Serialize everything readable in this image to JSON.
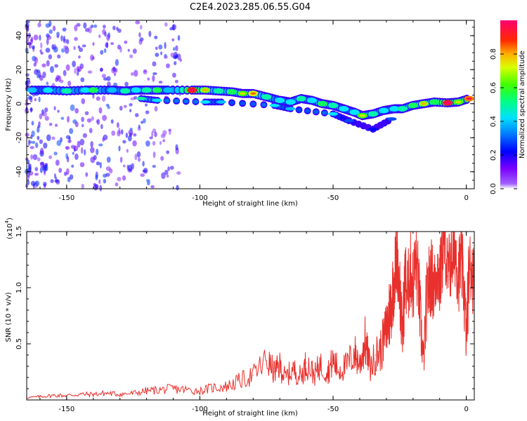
{
  "title": "C2E4.2023.285.06.55.G04",
  "colors": {
    "snr_line": "#e8302c",
    "scatter": "#9b3df0",
    "spectral_scale": [
      "#7a00ff",
      "#0000ff",
      "#00c8ff",
      "#00ff9a",
      "#4bff00",
      "#d8ff00",
      "#ffbf00",
      "#ff3a1a",
      "#ff006e"
    ]
  },
  "chart_data": [
    {
      "type": "heatmap",
      "xlabel": "Height of straight line (km)",
      "ylabel": "Frequency (Hz)",
      "xlim": [
        -165,
        3
      ],
      "ylim": [
        -50,
        49
      ],
      "xticks": [
        -150,
        -100,
        -50,
        0
      ],
      "yticks": [
        -40,
        -20,
        0,
        20,
        40
      ],
      "colorbar": {
        "label": "Normalized spectral amplitude",
        "range": [
          0,
          1
        ],
        "ticks": [
          "0.0",
          "0.2",
          "0.4",
          "0.6",
          "0.8"
        ]
      },
      "ridge": [
        {
          "x": -163,
          "y": 8,
          "a": 0.45
        },
        {
          "x": -157,
          "y": 8,
          "a": 0.5
        },
        {
          "x": -150,
          "y": 7.5,
          "a": 0.55
        },
        {
          "x": -143,
          "y": 8,
          "a": 0.5
        },
        {
          "x": -140,
          "y": 8,
          "a": 0.6
        },
        {
          "x": -133,
          "y": 8,
          "a": 0.45
        },
        {
          "x": -128,
          "y": 7.5,
          "a": 0.55
        },
        {
          "x": -124,
          "y": 8,
          "a": 0.5
        },
        {
          "x": -120,
          "y": 8,
          "a": 0.55
        },
        {
          "x": -116,
          "y": 8,
          "a": 0.6
        },
        {
          "x": -112,
          "y": 8,
          "a": 0.45
        },
        {
          "x": -103,
          "y": 8,
          "a": 0.9
        },
        {
          "x": -98,
          "y": 8,
          "a": 0.7
        },
        {
          "x": -93,
          "y": 7.5,
          "a": 0.55
        },
        {
          "x": -88,
          "y": 7,
          "a": 0.6
        },
        {
          "x": -84,
          "y": 6,
          "a": 0.65
        },
        {
          "x": -80,
          "y": 6,
          "a": 0.75
        },
        {
          "x": -75,
          "y": 4,
          "a": 0.55
        },
        {
          "x": -70,
          "y": 2,
          "a": 0.5
        },
        {
          "x": -66,
          "y": 1,
          "a": 0.5
        },
        {
          "x": -62,
          "y": 3,
          "a": 0.55
        },
        {
          "x": -58,
          "y": 2,
          "a": 0.5
        },
        {
          "x": -54,
          "y": 0,
          "a": 0.6
        },
        {
          "x": -50,
          "y": -1,
          "a": 0.55
        },
        {
          "x": -46,
          "y": -3,
          "a": 0.5
        },
        {
          "x": -42,
          "y": -5,
          "a": 0.5
        },
        {
          "x": -39,
          "y": -7,
          "a": 0.65
        },
        {
          "x": -35,
          "y": -6,
          "a": 0.55
        },
        {
          "x": -31,
          "y": -4,
          "a": 0.5
        },
        {
          "x": -27,
          "y": -3,
          "a": 0.5
        },
        {
          "x": -24,
          "y": -3,
          "a": 0.55
        },
        {
          "x": -20,
          "y": -1,
          "a": 0.6
        },
        {
          "x": -16,
          "y": 0,
          "a": 0.7
        },
        {
          "x": -12,
          "y": 1,
          "a": 0.6
        },
        {
          "x": -7,
          "y": 0.5,
          "a": 0.95
        },
        {
          "x": -3,
          "y": 1,
          "a": 0.65
        },
        {
          "x": 1,
          "y": 3,
          "a": 0.85
        }
      ],
      "secondary_ridge": [
        {
          "x": -122,
          "y": 3,
          "a": 0.55
        },
        {
          "x": -116,
          "y": 2,
          "a": 0.5
        },
        {
          "x": -98,
          "y": 1,
          "a": 0.5
        },
        {
          "x": -92,
          "y": 1,
          "a": 0.45
        },
        {
          "x": -72,
          "y": -1,
          "a": 0.5
        },
        {
          "x": -66,
          "y": -3,
          "a": 0.45
        },
        {
          "x": -50,
          "y": -6,
          "a": 0.5
        },
        {
          "x": -44,
          "y": -10,
          "a": 0.35
        },
        {
          "x": -35,
          "y": -15,
          "a": 0.3
        },
        {
          "x": -28,
          "y": -9,
          "a": 0.35
        }
      ]
    },
    {
      "type": "line",
      "xlabel": "Height of straight line (km)",
      "ylabel": "SNR (10 * v/v)",
      "yscale_label": "(x10",
      "yscale_exponent": "4",
      "xlim": [
        -165,
        3
      ],
      "ylim": [
        0,
        1.5
      ],
      "xticks": [
        -150,
        -100,
        -50,
        0
      ],
      "yticks": [
        "0.5",
        "1.0",
        "1.5"
      ],
      "series": [
        {
          "x": [
            -165,
            -160,
            -155,
            -150,
            -145,
            -140,
            -135,
            -130,
            -125,
            -120,
            -115,
            -110,
            -105,
            -100,
            -95,
            -90,
            -85,
            -80,
            -75,
            -72,
            -70,
            -68,
            -65,
            -62,
            -60,
            -57,
            -55,
            -52,
            -50,
            -48,
            -45,
            -42,
            -40,
            -38,
            -36,
            -34,
            -32,
            -30,
            -29,
            -28,
            -27,
            -26,
            -25,
            -24,
            -23,
            -22,
            -21,
            -20,
            -19,
            -18,
            -17,
            -16,
            -15,
            -14,
            -13,
            -12,
            -11,
            -10,
            -9,
            -8,
            -7,
            -6,
            -5,
            -4,
            -3,
            -2,
            -1,
            0,
            1,
            2,
            3
          ],
          "y": [
            0.02,
            0.03,
            0.04,
            0.04,
            0.05,
            0.05,
            0.06,
            0.05,
            0.06,
            0.08,
            0.09,
            0.1,
            0.09,
            0.08,
            0.11,
            0.12,
            0.17,
            0.22,
            0.35,
            0.25,
            0.3,
            0.2,
            0.27,
            0.21,
            0.33,
            0.22,
            0.31,
            0.25,
            0.35,
            0.27,
            0.3,
            0.42,
            0.32,
            0.52,
            0.28,
            0.4,
            0.45,
            0.62,
            0.75,
            0.9,
            1.1,
            1.3,
            1.0,
            0.55,
            1.1,
            0.95,
            1.18,
            1.0,
            1.25,
            1.05,
            0.62,
            0.35,
            0.85,
            1.05,
            1.1,
            0.98,
            1.2,
            1.05,
            1.28,
            1.45,
            1.1,
            1.22,
            1.3,
            1.35,
            1.1,
            1.25,
            1.05,
            0.55,
            1.15,
            1.2,
            1.0
          ]
        }
      ]
    }
  ]
}
